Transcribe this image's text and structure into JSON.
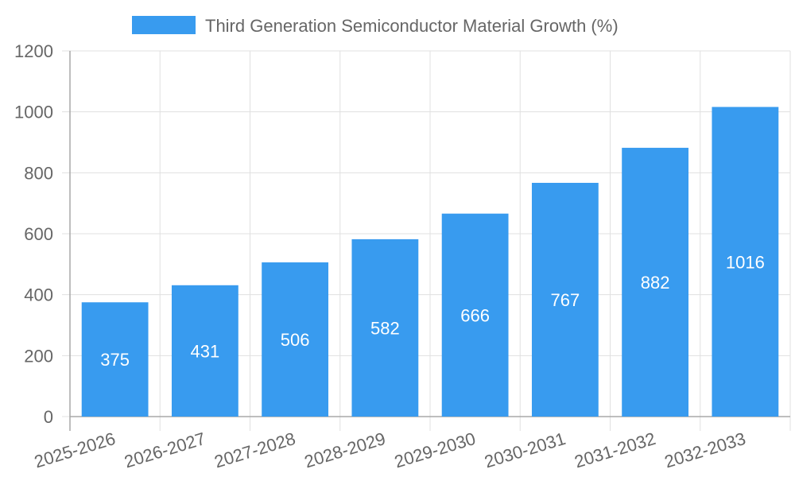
{
  "chart_data": {
    "type": "bar",
    "title": "",
    "xlabel": "",
    "ylabel": "",
    "categories": [
      "2025-2026",
      "2026-2027",
      "2027-2028",
      "2028-2029",
      "2029-2030",
      "2030-2031",
      "2031-2032",
      "2032-2033"
    ],
    "series": [
      {
        "name": "Third Generation Semiconductor Material Growth (%)",
        "values": [
          375,
          431,
          506,
          582,
          666,
          767,
          882,
          1016
        ],
        "color": "#389bef"
      }
    ],
    "ylim": [
      0,
      1200
    ],
    "yticks": [
      0,
      200,
      400,
      600,
      800,
      1000,
      1200
    ],
    "grid": true,
    "legend_position": "top",
    "data_labels": true
  },
  "legend": {
    "label": "Third Generation Semiconductor Material Growth (%)",
    "color": "#389bef"
  },
  "colors": {
    "bar": "#389bef",
    "grid": "#e0e0e0",
    "axis": "#a8a8a8",
    "text": "#666666"
  }
}
